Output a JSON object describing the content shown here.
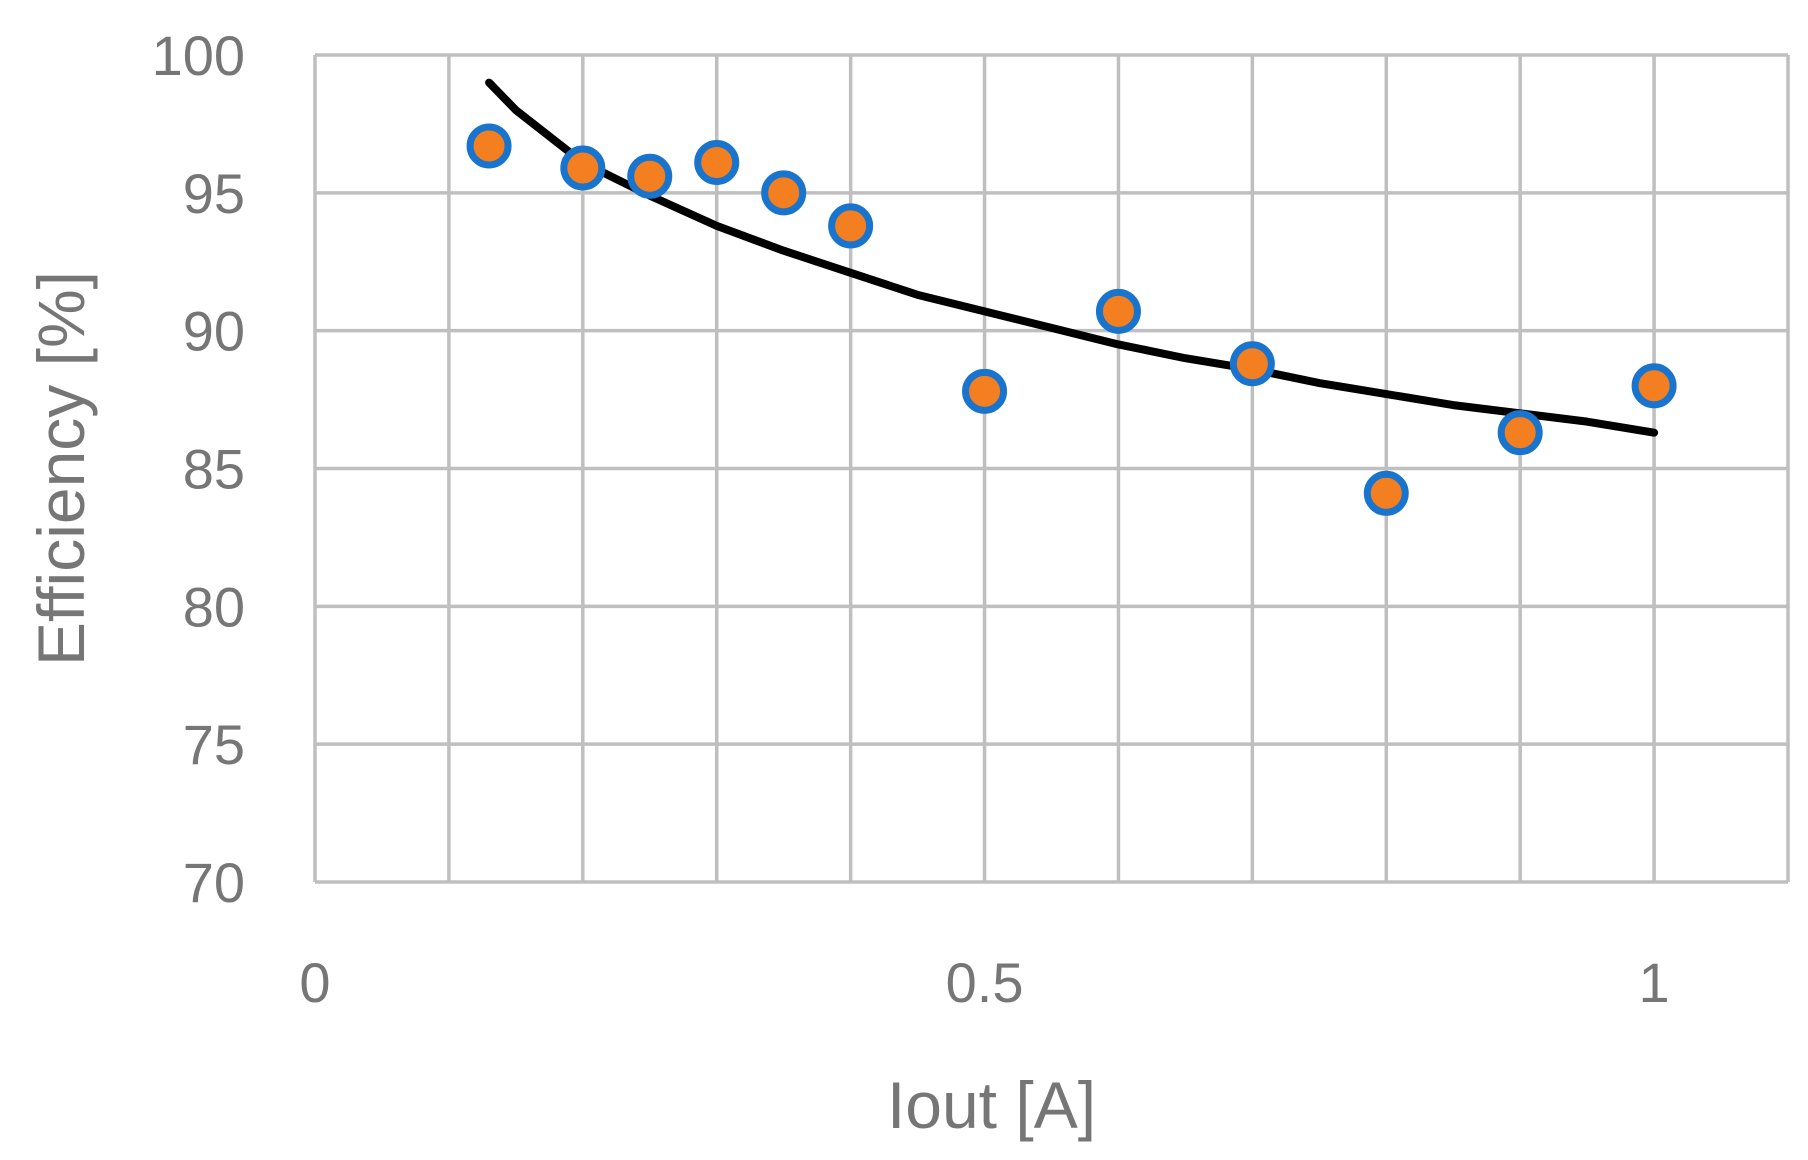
{
  "chart_data": {
    "type": "scatter",
    "title": "",
    "xlabel": "Iout [A]",
    "ylabel": "Efficiency [%]",
    "xlim": [
      0,
      1.1
    ],
    "ylim": [
      70,
      100
    ],
    "x_major_ticks": [
      0,
      0.5,
      1
    ],
    "x_gridlines": [
      0,
      0.1,
      0.2,
      0.3,
      0.4,
      0.5,
      0.6,
      0.7,
      0.8,
      0.9,
      1.0,
      1.1
    ],
    "y_ticks": [
      70,
      75,
      80,
      85,
      90,
      95,
      100
    ],
    "grid": true,
    "legend": "none",
    "series": [
      {
        "type": "scatter",
        "x": [
          0.13,
          0.2,
          0.25,
          0.3,
          0.35,
          0.4,
          0.5,
          0.6,
          0.7,
          0.8,
          0.9,
          1.0
        ],
        "y": [
          96.7,
          95.9,
          95.6,
          96.1,
          95.0,
          93.8,
          87.8,
          90.7,
          88.8,
          84.1,
          86.3,
          88.0
        ],
        "marker_fill": "#F47F20",
        "marker_edge": "#1874CD"
      },
      {
        "type": "line",
        "x": [
          0.13,
          0.15,
          0.2,
          0.25,
          0.3,
          0.35,
          0.4,
          0.45,
          0.5,
          0.55,
          0.6,
          0.65,
          0.7,
          0.75,
          0.8,
          0.85,
          0.9,
          0.95,
          1.0
        ],
        "y": [
          99.0,
          98.0,
          96.1,
          94.9,
          93.8,
          92.9,
          92.1,
          91.3,
          90.7,
          90.1,
          89.5,
          89.0,
          88.6,
          88.1,
          87.7,
          87.3,
          87.0,
          86.7,
          86.3
        ],
        "color": "#000000"
      }
    ]
  }
}
